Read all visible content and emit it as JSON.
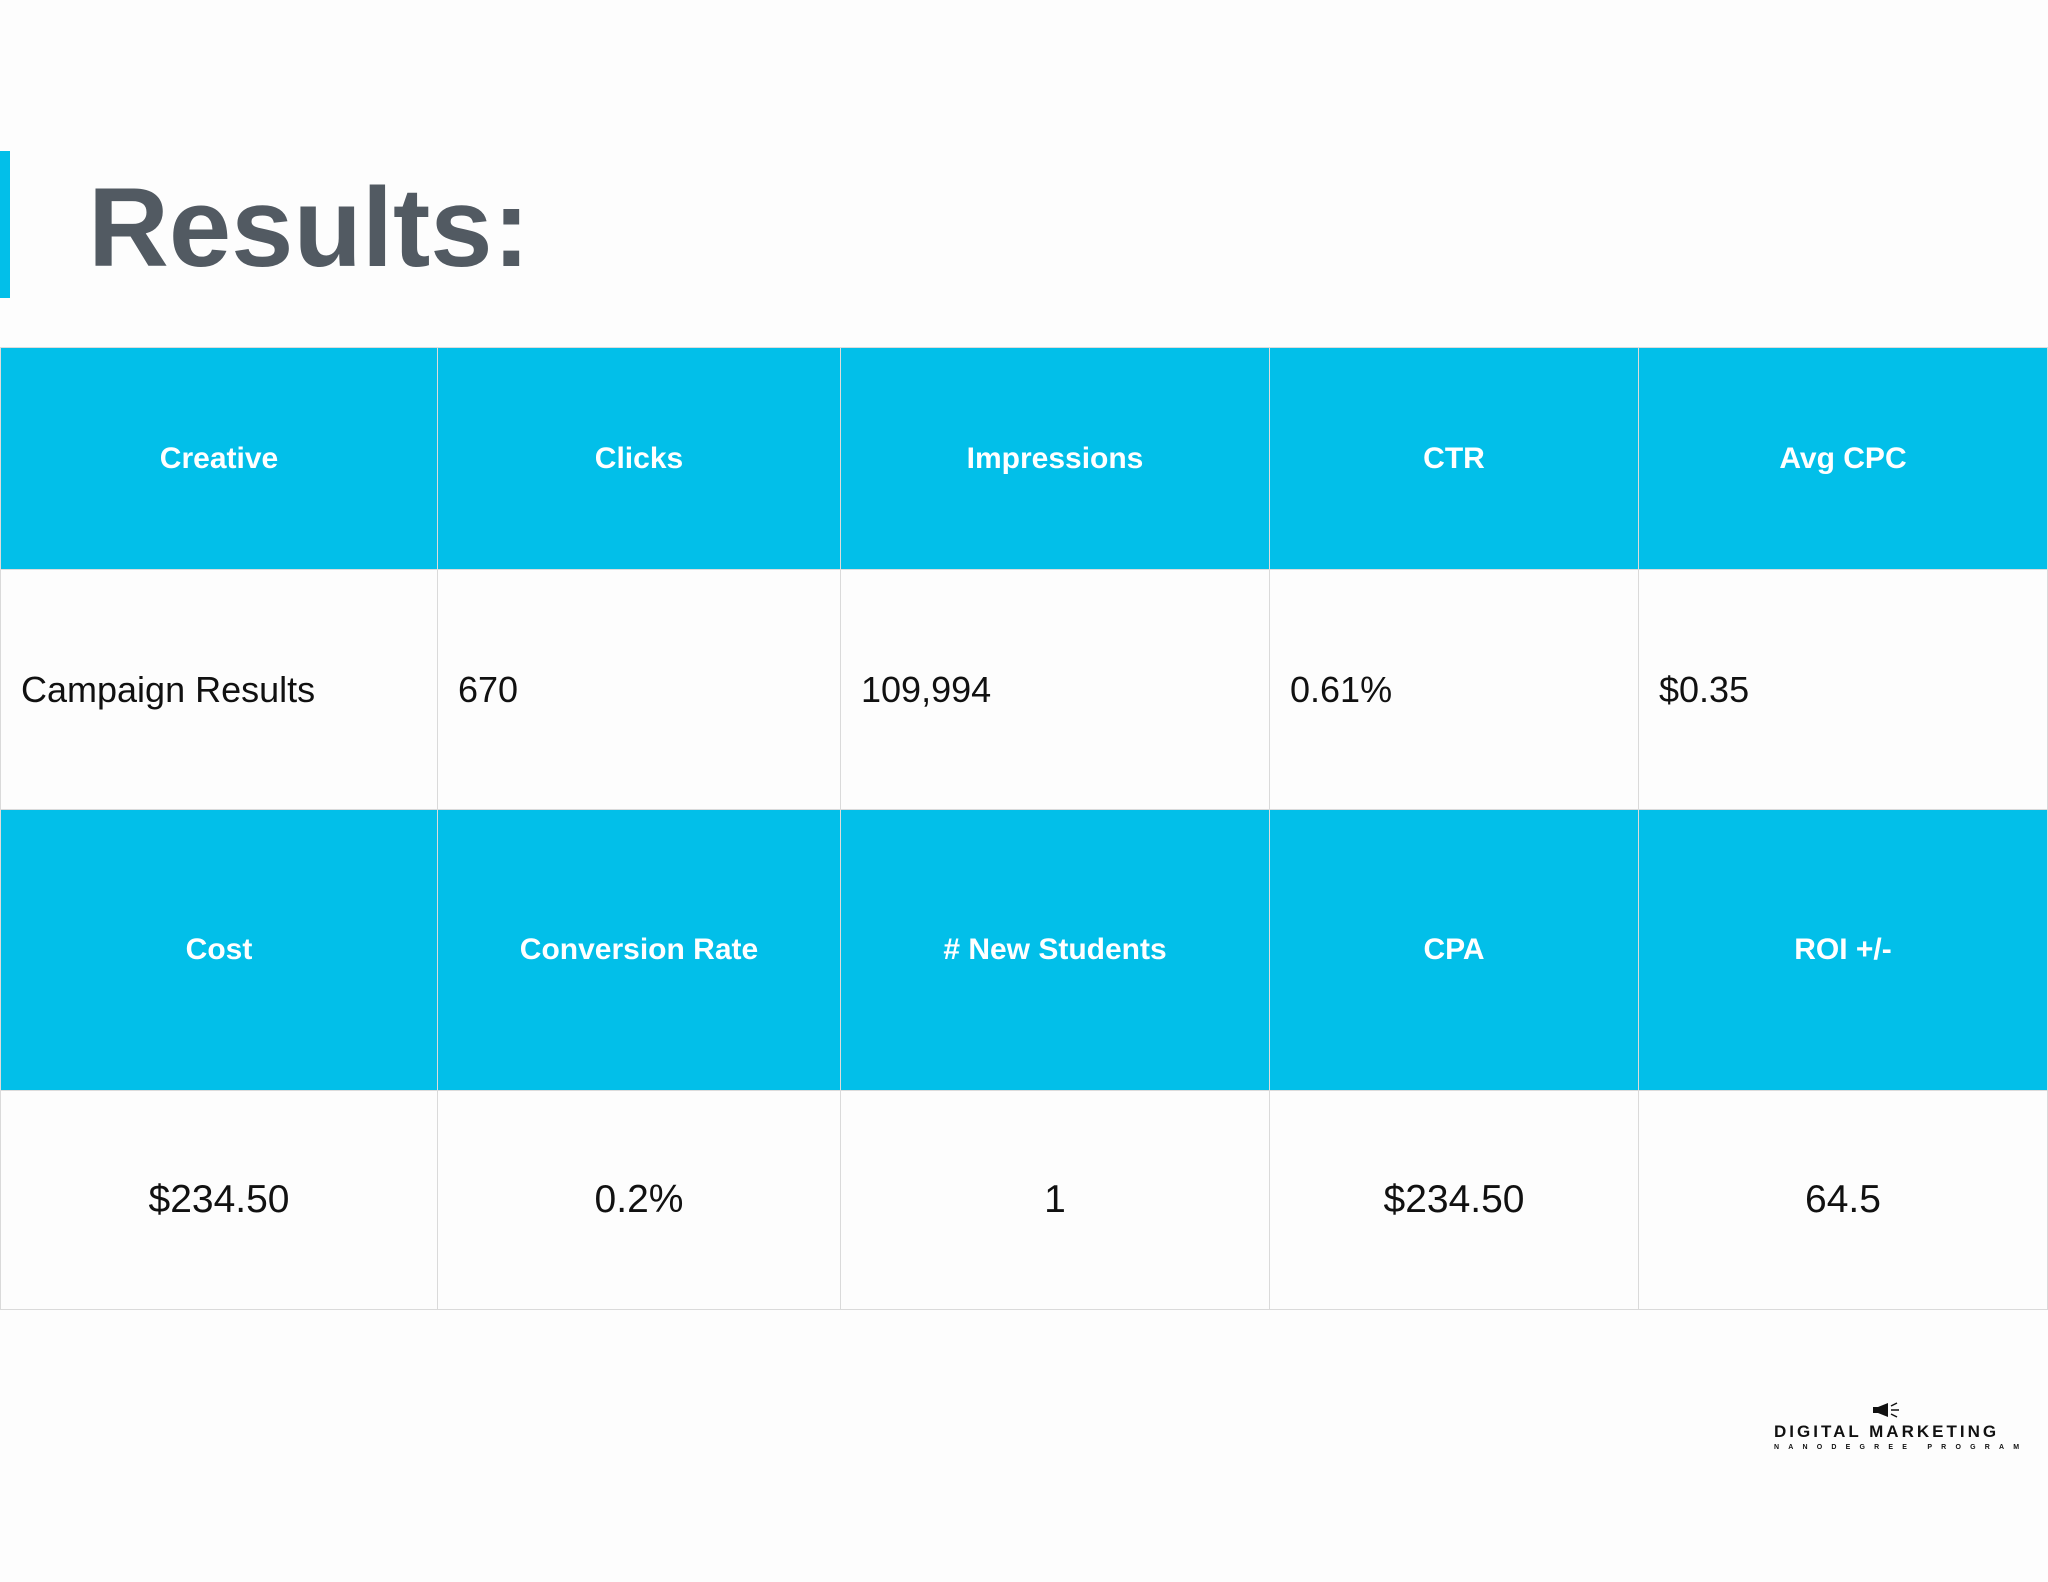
{
  "title": "Results:",
  "colors": {
    "accent": "#02bfe9",
    "title_text": "#525a62",
    "header_text": "#ffffff",
    "grid_border": "#dadada"
  },
  "table": {
    "header_row_1": [
      "Creative",
      "Clicks",
      "Impressions",
      "CTR",
      "Avg CPC"
    ],
    "value_row_1": [
      "Campaign Results",
      "670",
      "109,994",
      "0.61%",
      "$0.35"
    ],
    "header_row_2": [
      "Cost",
      "Conversion Rate",
      "# New Students",
      "CPA",
      "ROI +/-"
    ],
    "value_row_2": [
      "$234.50",
      "0.2%",
      "1",
      "$234.50",
      "64.5"
    ]
  },
  "logo": {
    "icon": "megaphone-icon",
    "main_text": "DIGITAL MARKETING",
    "sub_text": "NANODEGREE PROGRAM"
  }
}
